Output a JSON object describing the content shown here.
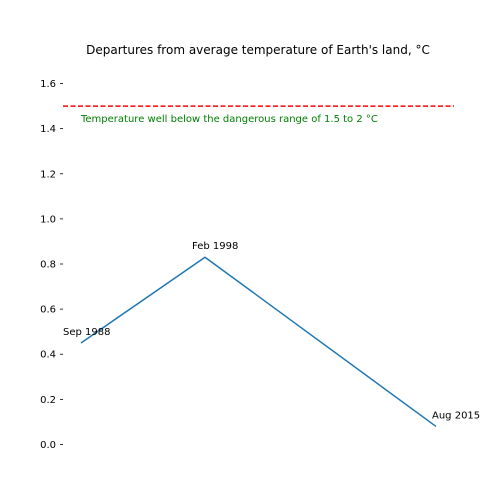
{
  "chart_data": {
    "type": "line",
    "title": "Departures from average temperature of Earth's land, °C",
    "xlabel": "",
    "ylabel": "",
    "ylim": [
      -0.06,
      1.66
    ],
    "yticks": [
      0.0,
      0.2,
      0.4,
      0.6,
      0.8,
      1.0,
      1.2,
      1.4,
      1.6
    ],
    "ytick_labels": [
      "0.0",
      "0.2",
      "0.4",
      "0.6",
      "0.8",
      "1.0",
      "1.2",
      "1.4",
      "1.6"
    ],
    "grid": false,
    "legend": "none",
    "points": [
      {
        "x": "Sep 1988",
        "y": 0.45,
        "label": "Sep 1988"
      },
      {
        "x": "Feb 1998",
        "y": 0.83,
        "label": "Feb 1998"
      },
      {
        "x": "Aug 2015",
        "y": 0.08,
        "label": "Aug 2015"
      }
    ],
    "series": [
      {
        "values": [
          0.45,
          0.83,
          0.08
        ],
        "color": "#1f77b4"
      }
    ],
    "threshold": {
      "y": 1.5,
      "color": "#ff0000",
      "style": "dashed",
      "annotation": "Temperature well below the dangerous range of 1.5 to 2 °C",
      "annotation_color": "#008000"
    }
  }
}
